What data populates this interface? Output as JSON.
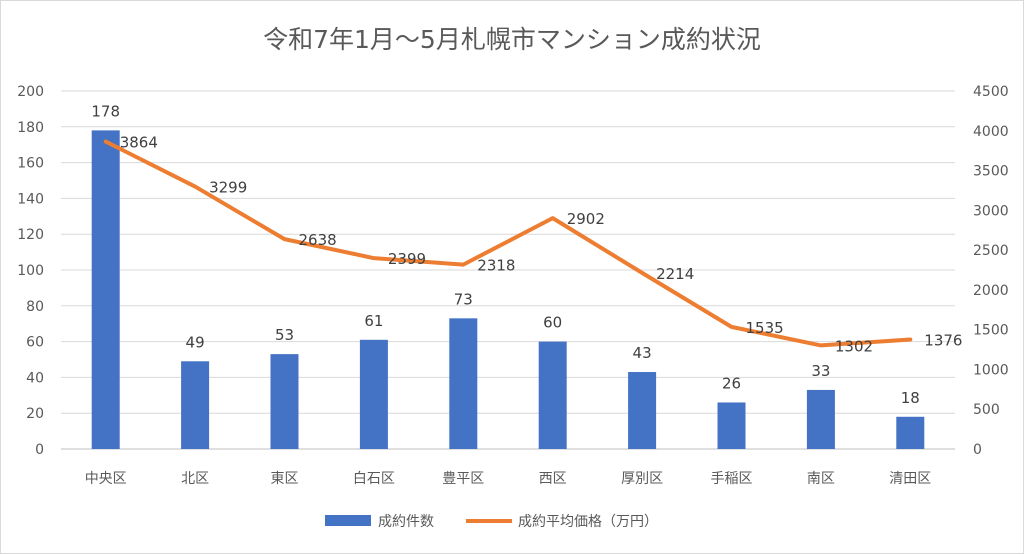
{
  "chart_data": {
    "type": "bar+line",
    "title": "令和7年1月～5月札幌市マンション成約状況",
    "categories": [
      "中央区",
      "北区",
      "東区",
      "白石区",
      "豊平区",
      "西区",
      "厚別区",
      "手稲区",
      "南区",
      "清田区"
    ],
    "series": [
      {
        "name": "成約件数",
        "type": "bar",
        "axis": "left",
        "color": "#4472C4",
        "values": [
          178,
          49,
          53,
          61,
          73,
          60,
          43,
          26,
          33,
          18
        ]
      },
      {
        "name": "成約平均価格（万円）",
        "type": "line",
        "axis": "right",
        "color": "#ED7D31",
        "values": [
          3864,
          3299,
          2638,
          2399,
          2318,
          2902,
          2214,
          1535,
          1302,
          1376
        ]
      }
    ],
    "y_left": {
      "min": 0,
      "max": 200,
      "step": 20
    },
    "y_right": {
      "min": 0,
      "max": 4500,
      "step": 500
    },
    "grid": true,
    "legend_position": "bottom"
  }
}
